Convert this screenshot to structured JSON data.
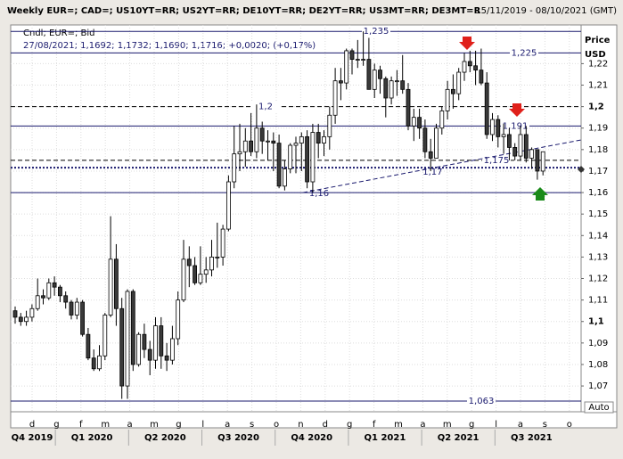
{
  "chart_data": {
    "type": "candlestick",
    "title": "Weekly EUR=; CAD=; US10YT=RR; US2YT=RR; DE10YT=RR; DE2YT=RR; US3MT=RR; DE3MT=R",
    "subtitle": "15/11/2019 - 08/10/2021 (GMT)",
    "legend_title": "Cndl; EUR=; Bid",
    "legend_values": "27/08/2021; 1,1692; 1,1732; 1,1690; 1,1716; +0,0020; (+0,17%)",
    "y_axis_title": "Price",
    "y_axis_unit": "USD",
    "scale_mode": "Auto",
    "up_color": "#ffffff",
    "down_color": "#3a3a3a",
    "grid": true,
    "ylim": [
      1.058,
      1.238
    ],
    "yticks": [
      {
        "value": 1.07,
        "label": "1,07"
      },
      {
        "value": 1.08,
        "label": "1,08"
      },
      {
        "value": 1.09,
        "label": "1,09"
      },
      {
        "value": 1.1,
        "label": "1,1"
      },
      {
        "value": 1.11,
        "label": "1,11"
      },
      {
        "value": 1.12,
        "label": "1,12"
      },
      {
        "value": 1.13,
        "label": "1,13"
      },
      {
        "value": 1.14,
        "label": "1,14"
      },
      {
        "value": 1.15,
        "label": "1,15"
      },
      {
        "value": 1.16,
        "label": "1,16"
      },
      {
        "value": 1.17,
        "label": "1,17"
      },
      {
        "value": 1.18,
        "label": "1,18"
      },
      {
        "value": 1.19,
        "label": "1,19"
      },
      {
        "value": 1.2,
        "label": "1,2"
      },
      {
        "value": 1.21,
        "label": "1,21"
      },
      {
        "value": 1.22,
        "label": "1,22"
      }
    ],
    "months": [
      "d",
      "g",
      "f",
      "m",
      "a",
      "m",
      "g",
      "l",
      "a",
      "s",
      "o",
      "n",
      "d",
      "g",
      "f",
      "m",
      "a",
      "m",
      "g",
      "l",
      "a",
      "s",
      "o"
    ],
    "quarters": [
      "Q4 2019",
      "Q1 2020",
      "Q2 2020",
      "Q3 2020",
      "Q4 2020",
      "Q1 2021",
      "Q2 2021",
      "Q3 2021"
    ],
    "open": [
      1.105,
      1.102,
      1.1,
      1.102,
      1.106,
      1.112,
      1.111,
      1.118,
      1.116,
      1.112,
      1.109,
      1.103,
      1.109,
      1.094,
      1.083,
      1.078,
      1.084,
      1.103,
      1.129,
      1.106,
      1.07,
      1.114,
      1.08,
      1.094,
      1.087,
      1.082,
      1.098,
      1.084,
      1.082,
      1.092,
      1.11,
      1.129,
      1.126,
      1.118,
      1.122,
      1.124,
      1.13,
      1.13,
      1.143,
      1.165,
      1.178,
      1.179,
      1.184,
      1.179,
      1.19,
      1.184,
      1.184,
      1.183,
      1.163,
      1.171,
      1.182,
      1.183,
      1.186,
      1.165,
      1.188,
      1.183,
      1.186,
      1.196,
      1.212,
      1.211,
      1.226,
      1.222,
      1.222,
      1.222,
      1.208,
      1.217,
      1.213,
      1.204,
      1.212,
      1.212,
      1.208,
      1.191,
      1.195,
      1.19,
      1.179,
      1.176,
      1.19,
      1.198,
      1.208,
      1.206,
      1.216,
      1.221,
      1.219,
      1.217,
      1.211,
      1.187,
      1.194,
      1.186,
      1.187,
      1.181,
      1.177,
      1.187,
      1.176,
      1.18,
      1.17
    ],
    "high": [
      1.107,
      1.104,
      1.105,
      1.108,
      1.12,
      1.115,
      1.12,
      1.121,
      1.117,
      1.114,
      1.11,
      1.111,
      1.11,
      1.097,
      1.087,
      1.089,
      1.104,
      1.149,
      1.136,
      1.111,
      1.115,
      1.115,
      1.095,
      1.099,
      1.091,
      1.102,
      1.102,
      1.09,
      1.098,
      1.114,
      1.138,
      1.135,
      1.13,
      1.135,
      1.13,
      1.138,
      1.146,
      1.145,
      1.168,
      1.191,
      1.192,
      1.19,
      1.197,
      1.201,
      1.193,
      1.189,
      1.188,
      1.187,
      1.175,
      1.183,
      1.186,
      1.188,
      1.189,
      1.192,
      1.192,
      1.189,
      1.2,
      1.218,
      1.218,
      1.227,
      1.227,
      1.231,
      1.235,
      1.232,
      1.22,
      1.219,
      1.214,
      1.214,
      1.217,
      1.224,
      1.211,
      1.199,
      1.199,
      1.194,
      1.185,
      1.192,
      1.2,
      1.212,
      1.215,
      1.218,
      1.225,
      1.226,
      1.226,
      1.227,
      1.216,
      1.197,
      1.196,
      1.192,
      1.19,
      1.183,
      1.191,
      1.191,
      1.181,
      1.18,
      1.178
    ],
    "low": [
      1.099,
      1.098,
      1.098,
      1.1,
      1.105,
      1.108,
      1.11,
      1.112,
      1.109,
      1.106,
      1.101,
      1.101,
      1.093,
      1.082,
      1.077,
      1.077,
      1.082,
      1.102,
      1.098,
      1.064,
      1.064,
      1.077,
      1.079,
      1.083,
      1.075,
      1.078,
      1.078,
      1.077,
      1.08,
      1.089,
      1.109,
      1.116,
      1.117,
      1.117,
      1.118,
      1.121,
      1.125,
      1.126,
      1.142,
      1.162,
      1.17,
      1.172,
      1.177,
      1.176,
      1.178,
      1.175,
      1.17,
      1.162,
      1.161,
      1.169,
      1.169,
      1.17,
      1.162,
      1.16,
      1.176,
      1.177,
      1.18,
      1.192,
      1.203,
      1.208,
      1.215,
      1.218,
      1.219,
      1.208,
      1.204,
      1.206,
      1.195,
      1.201,
      1.205,
      1.206,
      1.189,
      1.184,
      1.185,
      1.176,
      1.17,
      1.176,
      1.187,
      1.194,
      1.199,
      1.203,
      1.212,
      1.216,
      1.21,
      1.21,
      1.185,
      1.184,
      1.181,
      1.178,
      1.175,
      1.175,
      1.175,
      1.174,
      1.171,
      1.166,
      1.168
    ],
    "close": [
      1.102,
      1.1,
      1.102,
      1.106,
      1.112,
      1.111,
      1.118,
      1.116,
      1.112,
      1.109,
      1.103,
      1.109,
      1.094,
      1.083,
      1.078,
      1.084,
      1.103,
      1.129,
      1.106,
      1.07,
      1.114,
      1.08,
      1.094,
      1.087,
      1.082,
      1.098,
      1.084,
      1.082,
      1.092,
      1.11,
      1.129,
      1.126,
      1.118,
      1.122,
      1.124,
      1.13,
      1.13,
      1.143,
      1.165,
      1.178,
      1.179,
      1.184,
      1.179,
      1.19,
      1.184,
      1.184,
      1.183,
      1.163,
      1.171,
      1.182,
      1.183,
      1.186,
      1.165,
      1.188,
      1.183,
      1.186,
      1.196,
      1.212,
      1.211,
      1.226,
      1.222,
      1.222,
      1.222,
      1.208,
      1.217,
      1.213,
      1.204,
      1.212,
      1.212,
      1.208,
      1.191,
      1.195,
      1.19,
      1.179,
      1.176,
      1.19,
      1.198,
      1.208,
      1.206,
      1.216,
      1.221,
      1.219,
      1.217,
      1.211,
      1.187,
      1.194,
      1.186,
      1.187,
      1.181,
      1.177,
      1.187,
      1.176,
      1.18,
      1.17,
      1.179
    ],
    "levels": [
      {
        "value": 1.235,
        "label": "1,235",
        "style": "solid",
        "color": "#1a1a6e"
      },
      {
        "value": 1.225,
        "label": "1,225",
        "style": "solid",
        "color": "#1a1a6e"
      },
      {
        "value": 1.2,
        "label": "1,2",
        "style": "dashed",
        "color": "#000000"
      },
      {
        "value": 1.191,
        "label": "1,191",
        "style": "solid",
        "color": "#1a1a6e"
      },
      {
        "value": 1.175,
        "label": "1,175",
        "style": "dashed",
        "color": "#000000"
      },
      {
        "value": 1.1716,
        "style": "dotted",
        "color": "#1a1a6e"
      },
      {
        "value": 1.16,
        "style": "solid",
        "color": "#1a1a6e"
      },
      {
        "value": 1.063,
        "label": "1,063",
        "style": "solid",
        "color": "#1a1a6e"
      }
    ],
    "trendline": {
      "start": 1.16,
      "end": 1.1845,
      "color": "#1a1a6e",
      "labels": [
        {
          "value": 1.16,
          "label": "1,16"
        },
        {
          "value": 1.17,
          "label": "1,17"
        }
      ]
    }
  }
}
